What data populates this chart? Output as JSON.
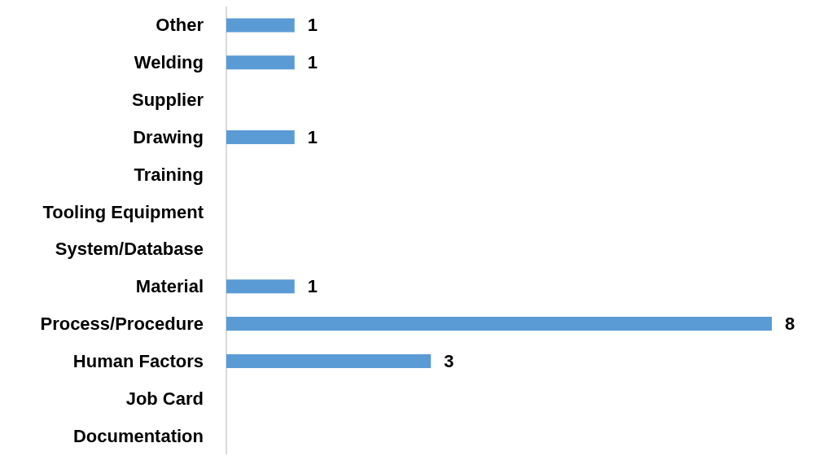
{
  "chart_data": {
    "type": "bar",
    "orientation": "horizontal",
    "categories": [
      "Other",
      "Welding",
      "Supplier",
      "Drawing",
      "Training",
      "Tooling Equipment",
      "System/Database",
      "Material",
      "Process/Procedure",
      "Human Factors",
      "Job Card",
      "Documentation"
    ],
    "values": [
      1,
      1,
      0,
      1,
      0,
      0,
      0,
      1,
      8,
      3,
      0,
      0
    ],
    "value_labels": [
      "1",
      "1",
      null,
      "1",
      null,
      null,
      null,
      "1",
      "8",
      "3",
      null,
      null
    ],
    "color": "#5b9bd5",
    "grid": false
  }
}
